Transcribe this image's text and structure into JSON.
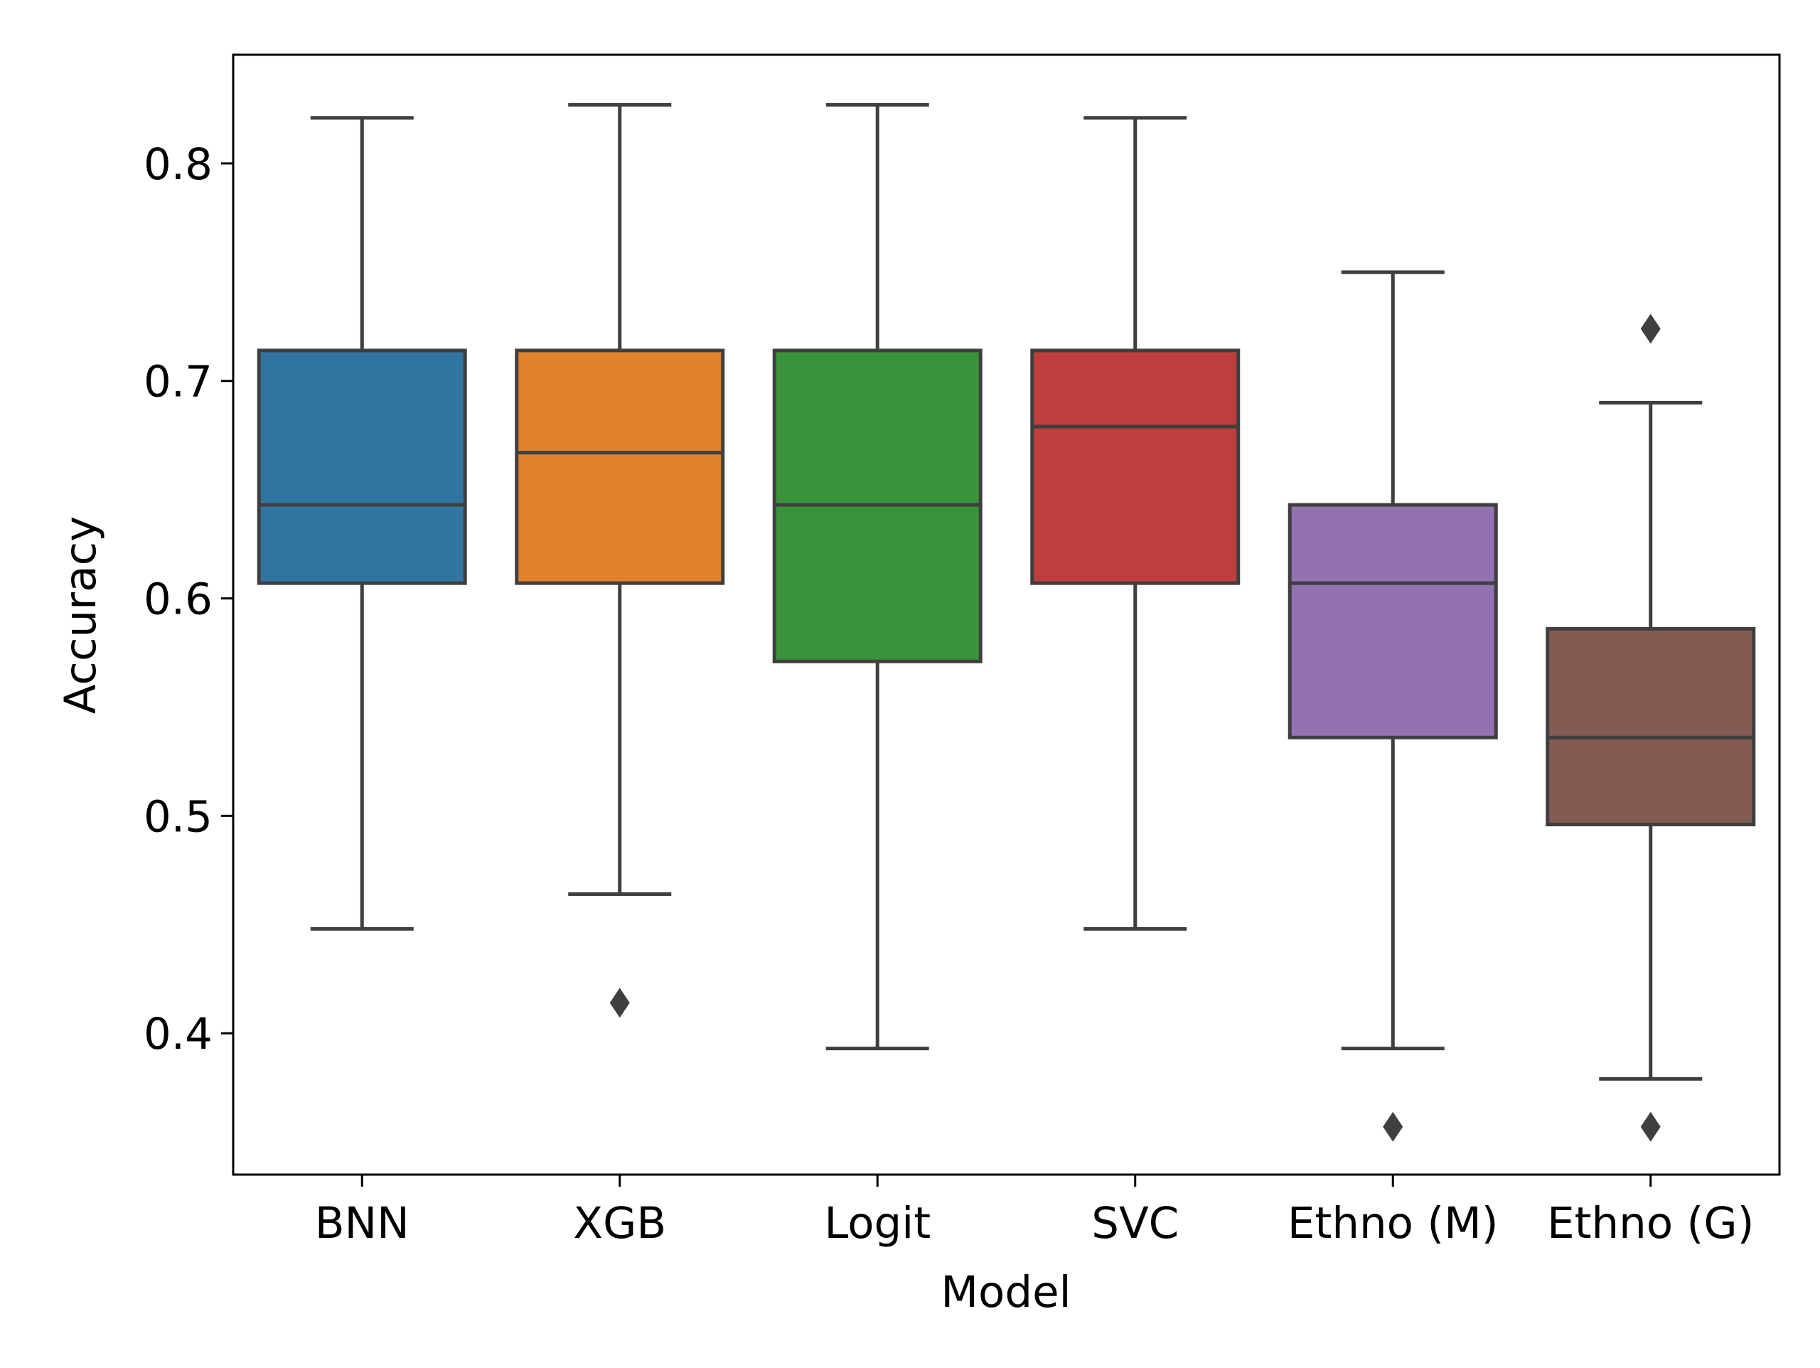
{
  "chart_data": {
    "type": "box",
    "title": "",
    "xlabel": "Model",
    "ylabel": "Accuracy",
    "ylim": [
      0.335,
      0.85
    ],
    "yticks": [
      0.4,
      0.5,
      0.6,
      0.7,
      0.8
    ],
    "ytick_labels": [
      "0.4",
      "0.5",
      "0.6",
      "0.7",
      "0.8"
    ],
    "grid": false,
    "legend": "none",
    "categories": [
      "BNN",
      "XGB",
      "Logit",
      "SVC",
      "Ethno (M)",
      "Ethno (G)"
    ],
    "series": [
      {
        "label": "BNN",
        "color": "#3274a1",
        "whisker_low": 0.448,
        "q1": 0.607,
        "median": 0.643,
        "q3": 0.714,
        "whisker_high": 0.821,
        "outliers": []
      },
      {
        "label": "XGB",
        "color": "#e1812c",
        "whisker_low": 0.464,
        "q1": 0.607,
        "median": 0.667,
        "q3": 0.714,
        "whisker_high": 0.827,
        "outliers": [
          0.414
        ]
      },
      {
        "label": "Logit",
        "color": "#3a923a",
        "whisker_low": 0.393,
        "q1": 0.571,
        "median": 0.643,
        "q3": 0.714,
        "whisker_high": 0.827,
        "outliers": []
      },
      {
        "label": "SVC",
        "color": "#c03d3e",
        "whisker_low": 0.448,
        "q1": 0.607,
        "median": 0.679,
        "q3": 0.714,
        "whisker_high": 0.821,
        "outliers": []
      },
      {
        "label": "Ethno (M)",
        "color": "#9372b2",
        "whisker_low": 0.393,
        "q1": 0.536,
        "median": 0.607,
        "q3": 0.643,
        "whisker_high": 0.75,
        "outliers": [
          0.357
        ]
      },
      {
        "label": "Ethno (G)",
        "color": "#845b53",
        "whisker_low": 0.379,
        "q1": 0.496,
        "median": 0.536,
        "q3": 0.586,
        "whisker_high": 0.69,
        "outliers": [
          0.724,
          0.357
        ]
      }
    ]
  }
}
